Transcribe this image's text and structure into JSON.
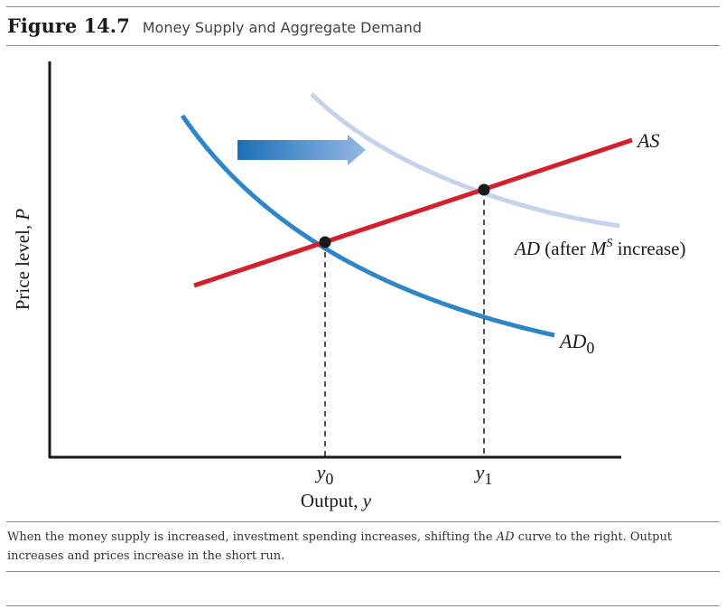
{
  "figure": {
    "number": "Figure 14.7",
    "title": "Money Supply and Aggregate Demand"
  },
  "diagram": {
    "y_axis_label": "Price level, P",
    "x_axis_label": "Output, y",
    "tick_labels": [
      "y0",
      "y1"
    ],
    "curves": {
      "as_label": "AS",
      "ad0_label": "AD0",
      "ad_after_label": "AD (after MS increase)"
    },
    "colors": {
      "as_curve": "#d61f2c",
      "ad0_curve": "#2d86c7",
      "ad_after_curve": "#c5d4ee",
      "shift_arrow_start": "#1a6fb8",
      "shift_arrow_end": "#93b8e4",
      "axis": "#1a1a1a"
    },
    "shift_direction": "right"
  },
  "caption": {
    "before": "When the money supply is increased, investment spending increases, shifting the ",
    "em": "AD",
    "after": " curve to the right. Output increases and prices increase in the short run."
  }
}
